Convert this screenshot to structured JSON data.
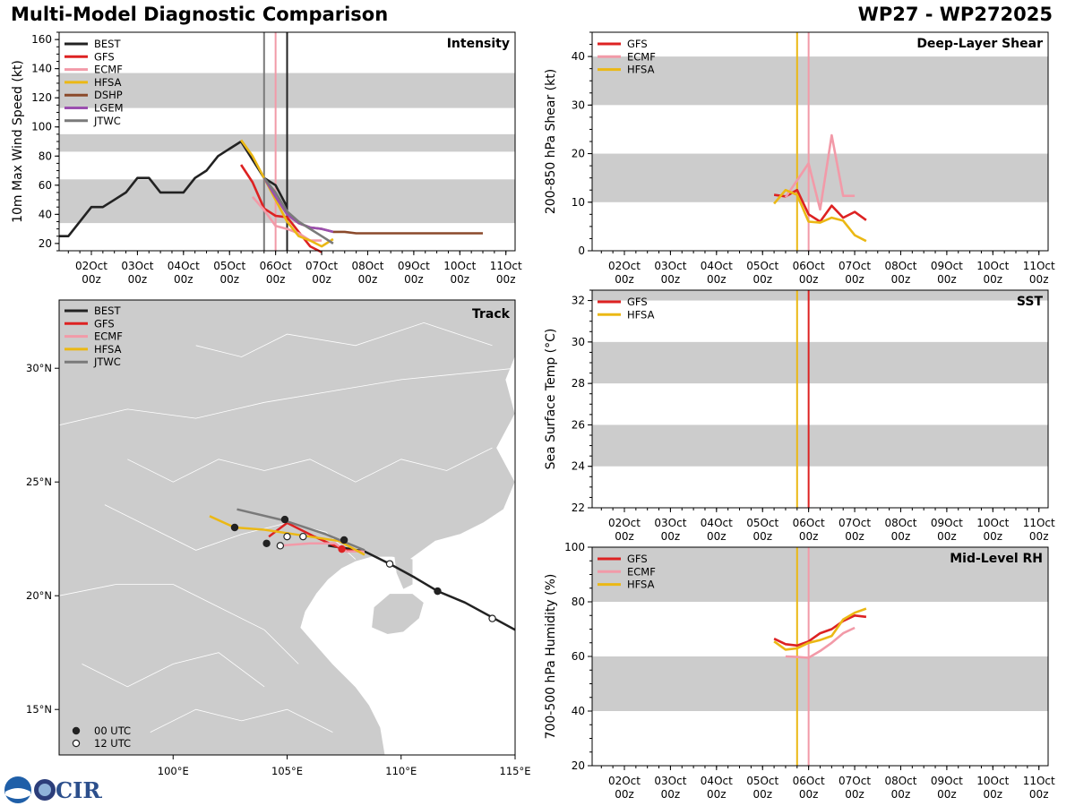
{
  "header": {
    "title": "Multi-Model Diagnostic Comparison",
    "storm_id": "WP27 - WP272025"
  },
  "logo": {
    "text": "CIRA"
  },
  "colors": {
    "BEST": "#222222",
    "GFS": "#dd2222",
    "ECMF": "#f29aa8",
    "HFSA": "#ebb814",
    "DSHP": "#8b4a2b",
    "LGEM": "#9b4fb0",
    "JTWC": "#7a7a7a",
    "band": "#cccccc"
  },
  "time_axis": {
    "labels": [
      "02Oct\n00z",
      "03Oct\n00z",
      "04Oct\n00z",
      "05Oct\n00z",
      "06Oct\n00z",
      "07Oct\n00z",
      "08Oct\n00z",
      "09Oct\n00z",
      "10Oct\n00z",
      "11Oct\n00z"
    ],
    "start_day": 1.3,
    "end_day": 11.2
  },
  "chart_data": [
    {
      "type": "line",
      "title": "Intensity",
      "ylabel": "10m Max Wind Speed (kt)",
      "ylim": [
        15,
        165
      ],
      "yticks": [
        20,
        40,
        60,
        80,
        100,
        120,
        140,
        160
      ],
      "bands": [
        [
          34,
          64
        ],
        [
          83,
          95
        ],
        [
          113,
          137
        ]
      ],
      "vlines": [
        {
          "x": 5.75,
          "color": "JTWC"
        },
        {
          "x": 6.0,
          "color": "ECMF"
        },
        {
          "x": 6.25,
          "color": "BEST"
        }
      ],
      "legend": [
        "BEST",
        "GFS",
        "ECMF",
        "HFSA",
        "DSHP",
        "LGEM",
        "JTWC"
      ],
      "series": [
        {
          "name": "BEST",
          "x": [
            1.3,
            1.5,
            2.0,
            2.25,
            2.75,
            3.0,
            3.25,
            3.5,
            4.0,
            4.25,
            4.5,
            4.75,
            5.0,
            5.25,
            5.75,
            6.0,
            6.25
          ],
          "y": [
            25,
            25,
            45,
            45,
            55,
            65,
            65,
            55,
            55,
            65,
            70,
            80,
            85,
            90,
            65,
            60,
            45
          ]
        },
        {
          "name": "GFS",
          "x": [
            5.25,
            5.5,
            5.75,
            6.0,
            6.25,
            6.5,
            6.75,
            7.0
          ],
          "y": [
            74,
            62,
            44,
            39,
            38,
            28,
            18,
            14
          ]
        },
        {
          "name": "ECMF",
          "x": [
            5.5,
            5.75,
            6.0,
            6.25,
            6.5,
            6.75,
            7.0
          ],
          "y": [
            52,
            43,
            32,
            30,
            27,
            22,
            22
          ]
        },
        {
          "name": "HFSA",
          "x": [
            5.25,
            5.5,
            5.75,
            6.0,
            6.25,
            6.5,
            6.75,
            7.0,
            7.25
          ],
          "y": [
            91,
            80,
            65,
            50,
            35,
            25,
            22,
            18,
            23
          ]
        },
        {
          "name": "DSHP",
          "x": [
            6.25,
            6.5,
            6.75,
            7.0,
            7.25,
            7.5,
            7.75,
            8.0,
            9.0,
            10.0,
            10.5
          ],
          "y": [
            40,
            34,
            31,
            30,
            28,
            28,
            27,
            27,
            27,
            27,
            27
          ]
        },
        {
          "name": "LGEM",
          "x": [
            5.75,
            6.0,
            6.25,
            6.5,
            6.75,
            7.0,
            7.25
          ],
          "y": [
            65,
            52,
            40,
            34,
            31,
            30,
            28
          ]
        },
        {
          "name": "JTWC",
          "x": [
            5.75,
            6.0,
            6.25,
            6.5,
            6.75,
            7.0,
            7.25
          ],
          "y": [
            65,
            55,
            42,
            35,
            30,
            25,
            20
          ]
        }
      ]
    },
    {
      "type": "line",
      "title": "Deep-Layer Shear",
      "ylabel": "200-850 hPa Shear (kt)",
      "ylim": [
        0,
        45
      ],
      "yticks": [
        0,
        10,
        20,
        30,
        40
      ],
      "bands": [
        [
          10,
          20
        ],
        [
          30,
          40
        ]
      ],
      "vlines": [
        {
          "x": 5.75,
          "color": "HFSA"
        },
        {
          "x": 6.0,
          "color": "ECMF"
        }
      ],
      "legend": [
        "GFS",
        "ECMF",
        "HFSA"
      ],
      "series": [
        {
          "name": "GFS",
          "x": [
            5.25,
            5.5,
            5.75,
            6.0,
            6.25,
            6.5,
            6.75,
            7.0,
            7.25
          ],
          "y": [
            11.5,
            11.2,
            12.5,
            7.5,
            6.0,
            9.3,
            6.8,
            8.0,
            6.3
          ]
        },
        {
          "name": "ECMF",
          "x": [
            5.5,
            5.75,
            6.0,
            6.25,
            6.5,
            6.75,
            7.0
          ],
          "y": [
            11.0,
            14.5,
            18.0,
            8.5,
            23.8,
            11.3,
            11.3
          ]
        },
        {
          "name": "HFSA",
          "x": [
            5.25,
            5.5,
            5.75,
            6.0,
            6.25,
            6.5,
            6.75,
            7.0,
            7.25
          ],
          "y": [
            9.7,
            12.5,
            11.5,
            6.0,
            5.8,
            6.8,
            6.2,
            3.2,
            2.0
          ]
        }
      ]
    },
    {
      "type": "line",
      "title": "SST",
      "ylabel": "Sea Surface Temp (°C)",
      "ylim": [
        22,
        32.5
      ],
      "yticks": [
        22,
        24,
        26,
        28,
        30,
        32
      ],
      "bands": [
        [
          24,
          26
        ],
        [
          28,
          30
        ],
        [
          32,
          32.5
        ]
      ],
      "vlines": [
        {
          "x": 5.75,
          "color": "HFSA"
        },
        {
          "x": 6.0,
          "color": "GFS"
        }
      ],
      "legend": [
        "GFS",
        "HFSA"
      ],
      "series": []
    },
    {
      "type": "line",
      "title": "Mid-Level RH",
      "ylabel": "700-500 hPa Humidity (%)",
      "ylim": [
        20,
        100
      ],
      "yticks": [
        20,
        40,
        60,
        80,
        100
      ],
      "bands": [
        [
          40,
          60
        ],
        [
          80,
          100
        ]
      ],
      "vlines": [
        {
          "x": 5.75,
          "color": "HFSA"
        },
        {
          "x": 6.0,
          "color": "ECMF"
        }
      ],
      "legend": [
        "GFS",
        "ECMF",
        "HFSA"
      ],
      "series": [
        {
          "name": "GFS",
          "x": [
            5.25,
            5.5,
            5.75,
            6.0,
            6.25,
            6.5,
            6.75,
            7.0,
            7.25
          ],
          "y": [
            66.5,
            64.5,
            64.0,
            65.5,
            68.5,
            70.0,
            73.0,
            75.0,
            74.5
          ]
        },
        {
          "name": "ECMF",
          "x": [
            5.5,
            5.75,
            6.0,
            6.25,
            6.5,
            6.75,
            7.0
          ],
          "y": [
            60.0,
            59.8,
            59.5,
            62.0,
            65.0,
            68.5,
            70.5
          ]
        },
        {
          "name": "HFSA",
          "x": [
            5.25,
            5.5,
            5.75,
            6.0,
            6.25,
            6.5,
            6.75,
            7.0,
            7.25
          ],
          "y": [
            65.5,
            62.5,
            63.0,
            65.0,
            66.0,
            67.5,
            73.5,
            76.0,
            77.5
          ]
        }
      ]
    },
    {
      "type": "map",
      "title": "Track",
      "lon_range": [
        95,
        115
      ],
      "lat_range": [
        13,
        33
      ],
      "lon_ticks": [
        {
          "v": 100,
          "label": "100°E"
        },
        {
          "v": 105,
          "label": "105°E"
        },
        {
          "v": 110,
          "label": "110°E"
        },
        {
          "v": 115,
          "label": "115°E"
        }
      ],
      "lat_ticks": [
        {
          "v": 15,
          "label": "15°N"
        },
        {
          "v": 20,
          "label": "20°N"
        },
        {
          "v": 25,
          "label": "25°N"
        },
        {
          "v": 30,
          "label": "30°N"
        }
      ],
      "legend": [
        "BEST",
        "GFS",
        "ECMF",
        "HFSA",
        "JTWC"
      ],
      "marker_legend": [
        {
          "label": "00 UTC",
          "filled": true
        },
        {
          "label": "12 UTC",
          "filled": false
        }
      ],
      "tracks": [
        {
          "name": "BEST",
          "lon": [
            115.0,
            112.8,
            111.6,
            110.6,
            109.5,
            108.4,
            107.5,
            106.8
          ],
          "lat": [
            18.5,
            19.7,
            20.2,
            20.8,
            21.4,
            21.95,
            22.1,
            22.2
          ],
          "markers": [
            {
              "lon": 114.0,
              "lat": 19.0,
              "filled": false
            },
            {
              "lon": 111.6,
              "lat": 20.2,
              "filled": true
            },
            {
              "lon": 109.5,
              "lat": 21.4,
              "filled": false
            }
          ]
        },
        {
          "name": "GFS",
          "lon": [
            108.4,
            107.6,
            107.3,
            106.2,
            105.0,
            104.2
          ],
          "lat": [
            21.95,
            22.0,
            22.1,
            22.6,
            23.2,
            22.6
          ],
          "markers": [
            {
              "lon": 107.4,
              "lat": 22.05,
              "filled": true,
              "color": "GFS"
            }
          ]
        },
        {
          "name": "ECMF",
          "lon": [
            108.4,
            107.6,
            107.1,
            106.0,
            104.7
          ],
          "lat": [
            21.95,
            21.95,
            22.3,
            22.3,
            22.2
          ],
          "markers": []
        },
        {
          "name": "HFSA",
          "lon": [
            108.4,
            107.3,
            106.0,
            104.0,
            102.7,
            101.6
          ],
          "lat": [
            21.8,
            22.4,
            22.6,
            22.9,
            23.0,
            23.5
          ],
          "markers": []
        },
        {
          "name": "JTWC",
          "lon": [
            108.4,
            106.7,
            104.9,
            102.8
          ],
          "lat": [
            22.0,
            22.7,
            23.3,
            23.8
          ],
          "markers": []
        }
      ],
      "extra_markers": [
        {
          "lon": 102.7,
          "lat": 23.0,
          "filled": true
        },
        {
          "lon": 104.9,
          "lat": 23.35,
          "filled": true
        },
        {
          "lon": 107.5,
          "lat": 22.45,
          "filled": true
        },
        {
          "lon": 104.1,
          "lat": 22.3,
          "filled": true
        },
        {
          "lon": 104.7,
          "lat": 22.2,
          "filled": false
        },
        {
          "lon": 105.0,
          "lat": 22.6,
          "filled": false
        },
        {
          "lon": 105.7,
          "lat": 22.6,
          "filled": false
        }
      ]
    }
  ]
}
